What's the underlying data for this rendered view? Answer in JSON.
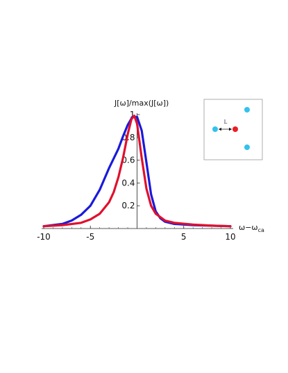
{
  "chart_data": {
    "type": "line",
    "xlabel_main": "ω−ω",
    "xlabel_sub": "ca",
    "ylabel": "J[ω]/max(J[ω])",
    "xlim": [
      -10,
      10
    ],
    "ylim": [
      0,
      1
    ],
    "x_ticks": [
      -10,
      -5,
      5,
      10
    ],
    "x_tick_labels": [
      "-10",
      "-5",
      "5",
      "10"
    ],
    "y_ticks": [
      0.2,
      0.4,
      0.6,
      0.8,
      1
    ],
    "y_tick_labels": [
      "0.2",
      "0.4",
      "0.6",
      "0.8",
      "1"
    ],
    "series": [
      {
        "color": "#1a1adc",
        "x": [
          -10,
          -8,
          -7,
          -6,
          -5,
          -4,
          -3,
          -2,
          -1.5,
          -1,
          -0.5,
          0,
          0.5,
          1,
          1.5,
          2,
          2.5,
          3,
          4,
          6,
          8,
          10
        ],
        "y": [
          0.02,
          0.04,
          0.07,
          0.12,
          0.2,
          0.34,
          0.53,
          0.7,
          0.81,
          0.91,
          0.98,
          0.98,
          0.86,
          0.58,
          0.3,
          0.15,
          0.09,
          0.06,
          0.04,
          0.03,
          0.025,
          0.02
        ]
      },
      {
        "color": "#e0102c",
        "x": [
          -10,
          -8,
          -6,
          -5,
          -4,
          -3,
          -2.5,
          -2,
          -1.5,
          -1,
          -0.6,
          -0.3,
          0,
          0.5,
          1,
          1.5,
          2,
          3,
          4,
          6,
          8,
          10
        ],
        "y": [
          0.02,
          0.03,
          0.05,
          0.08,
          0.13,
          0.23,
          0.32,
          0.45,
          0.62,
          0.83,
          0.96,
          0.99,
          0.92,
          0.62,
          0.35,
          0.2,
          0.13,
          0.07,
          0.05,
          0.035,
          0.025,
          0.02
        ]
      }
    ],
    "inset": {
      "label": "L",
      "dots": [
        {
          "color": "#33c2ee"
        },
        {
          "color": "#ee1c24"
        },
        {
          "color": "#33c2ee"
        },
        {
          "color": "#33c2ee"
        }
      ]
    }
  }
}
